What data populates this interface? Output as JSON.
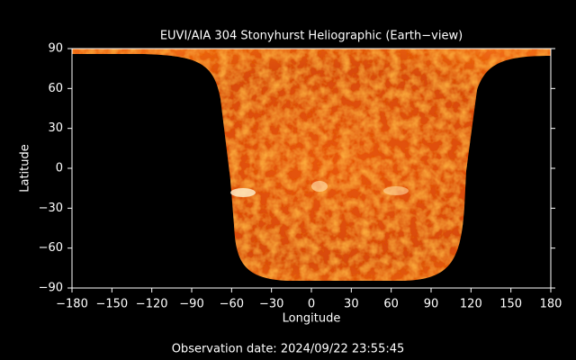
{
  "chart_data": {
    "type": "image",
    "title": "EUVI/AIA 304 Stonyhurst Heliographic (Earth−view)",
    "xlabel": "Longitude",
    "ylabel": "Latitude",
    "annotation": "Observation date: 2024/09/22 23:55:45",
    "xlim": [
      -180,
      180
    ],
    "xticks": [
      {
        "value": -180,
        "label": "−180"
      },
      {
        "value": -150,
        "label": "−150"
      },
      {
        "value": -120,
        "label": "−120"
      },
      {
        "value": -90,
        "label": "−90"
      },
      {
        "value": -60,
        "label": "−60"
      },
      {
        "value": -30,
        "label": "−30"
      },
      0,
      30,
      60,
      90,
      120,
      150,
      180
    ],
    "ylim": [
      -90,
      90
    ],
    "yticks": [
      {
        "value": -90,
        "label": "−90"
      },
      {
        "value": -60,
        "label": "−60"
      },
      {
        "value": -30,
        "label": "−30"
      },
      0,
      30,
      60,
      90
    ]
  }
}
